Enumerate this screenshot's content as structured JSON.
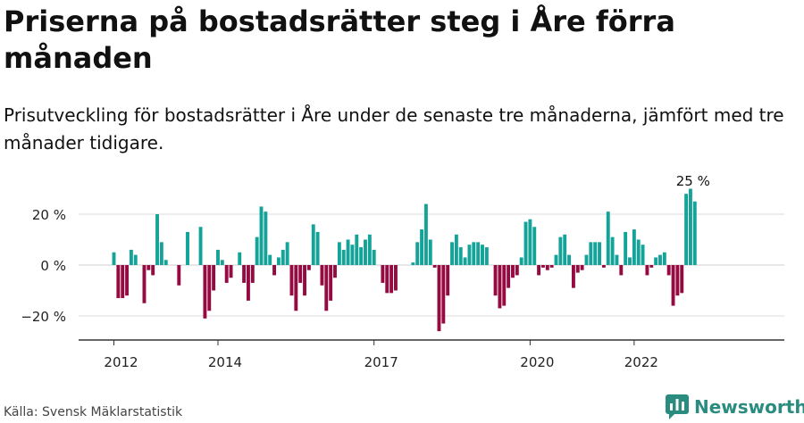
{
  "title": "Priserna på bostadsrätter steg i Åre förra månaden",
  "subtitle": "Prisutveckling för bostadsrätter i Åre under de senaste tre månaderna, jämfört med tre månader tidigare.",
  "source": "Källa: Svensk Mäklarstatistik",
  "brand": "Newsworthy",
  "chart_data": {
    "type": "bar",
    "xlabel": "",
    "ylabel": "",
    "unit": "%",
    "ylim": [
      -30,
      30
    ],
    "yticks": [
      20,
      0,
      -20
    ],
    "ytick_labels": [
      "20 %",
      "0 %",
      "−20 %"
    ],
    "xticks": [
      2012,
      2014,
      2017,
      2020,
      2022
    ],
    "x_start": "2012-01",
    "annotation": "25 %",
    "colors": {
      "positive": "#13a398",
      "negative": "#940a41",
      "grid": "#dddddd",
      "axis": "#333333"
    },
    "values": [
      5,
      -13,
      -13,
      -12,
      6,
      4,
      0,
      -15,
      -2,
      -4,
      20,
      9,
      2,
      0,
      0,
      -8,
      0,
      13,
      0,
      0,
      15,
      -21,
      -18,
      -10,
      6,
      2,
      -7,
      -5,
      0,
      5,
      -7,
      -14,
      -7,
      11,
      23,
      21,
      4,
      -4,
      3,
      6,
      9,
      -12,
      -18,
      -7,
      -12,
      -2,
      16,
      13,
      -8,
      -18,
      -14,
      -5,
      9,
      6,
      10,
      8,
      12,
      7,
      10,
      12,
      6,
      0,
      -7,
      -11,
      -11,
      -10,
      0,
      0,
      0,
      1,
      9,
      14,
      24,
      10,
      -1,
      -26,
      -23,
      -12,
      9,
      12,
      7,
      3,
      8,
      9,
      9,
      8,
      7,
      0,
      -12,
      -17,
      -16,
      -9,
      -5,
      -4,
      3,
      17,
      18,
      15,
      -4,
      -1,
      -2,
      -1,
      4,
      11,
      12,
      4,
      -9,
      -3,
      -2,
      4,
      9,
      9,
      9,
      -1,
      21,
      11,
      4,
      -4,
      13,
      3,
      14,
      10,
      8,
      -4,
      -1,
      3,
      4,
      5,
      -4,
      -16,
      -12,
      -11,
      28,
      30,
      25
    ]
  }
}
